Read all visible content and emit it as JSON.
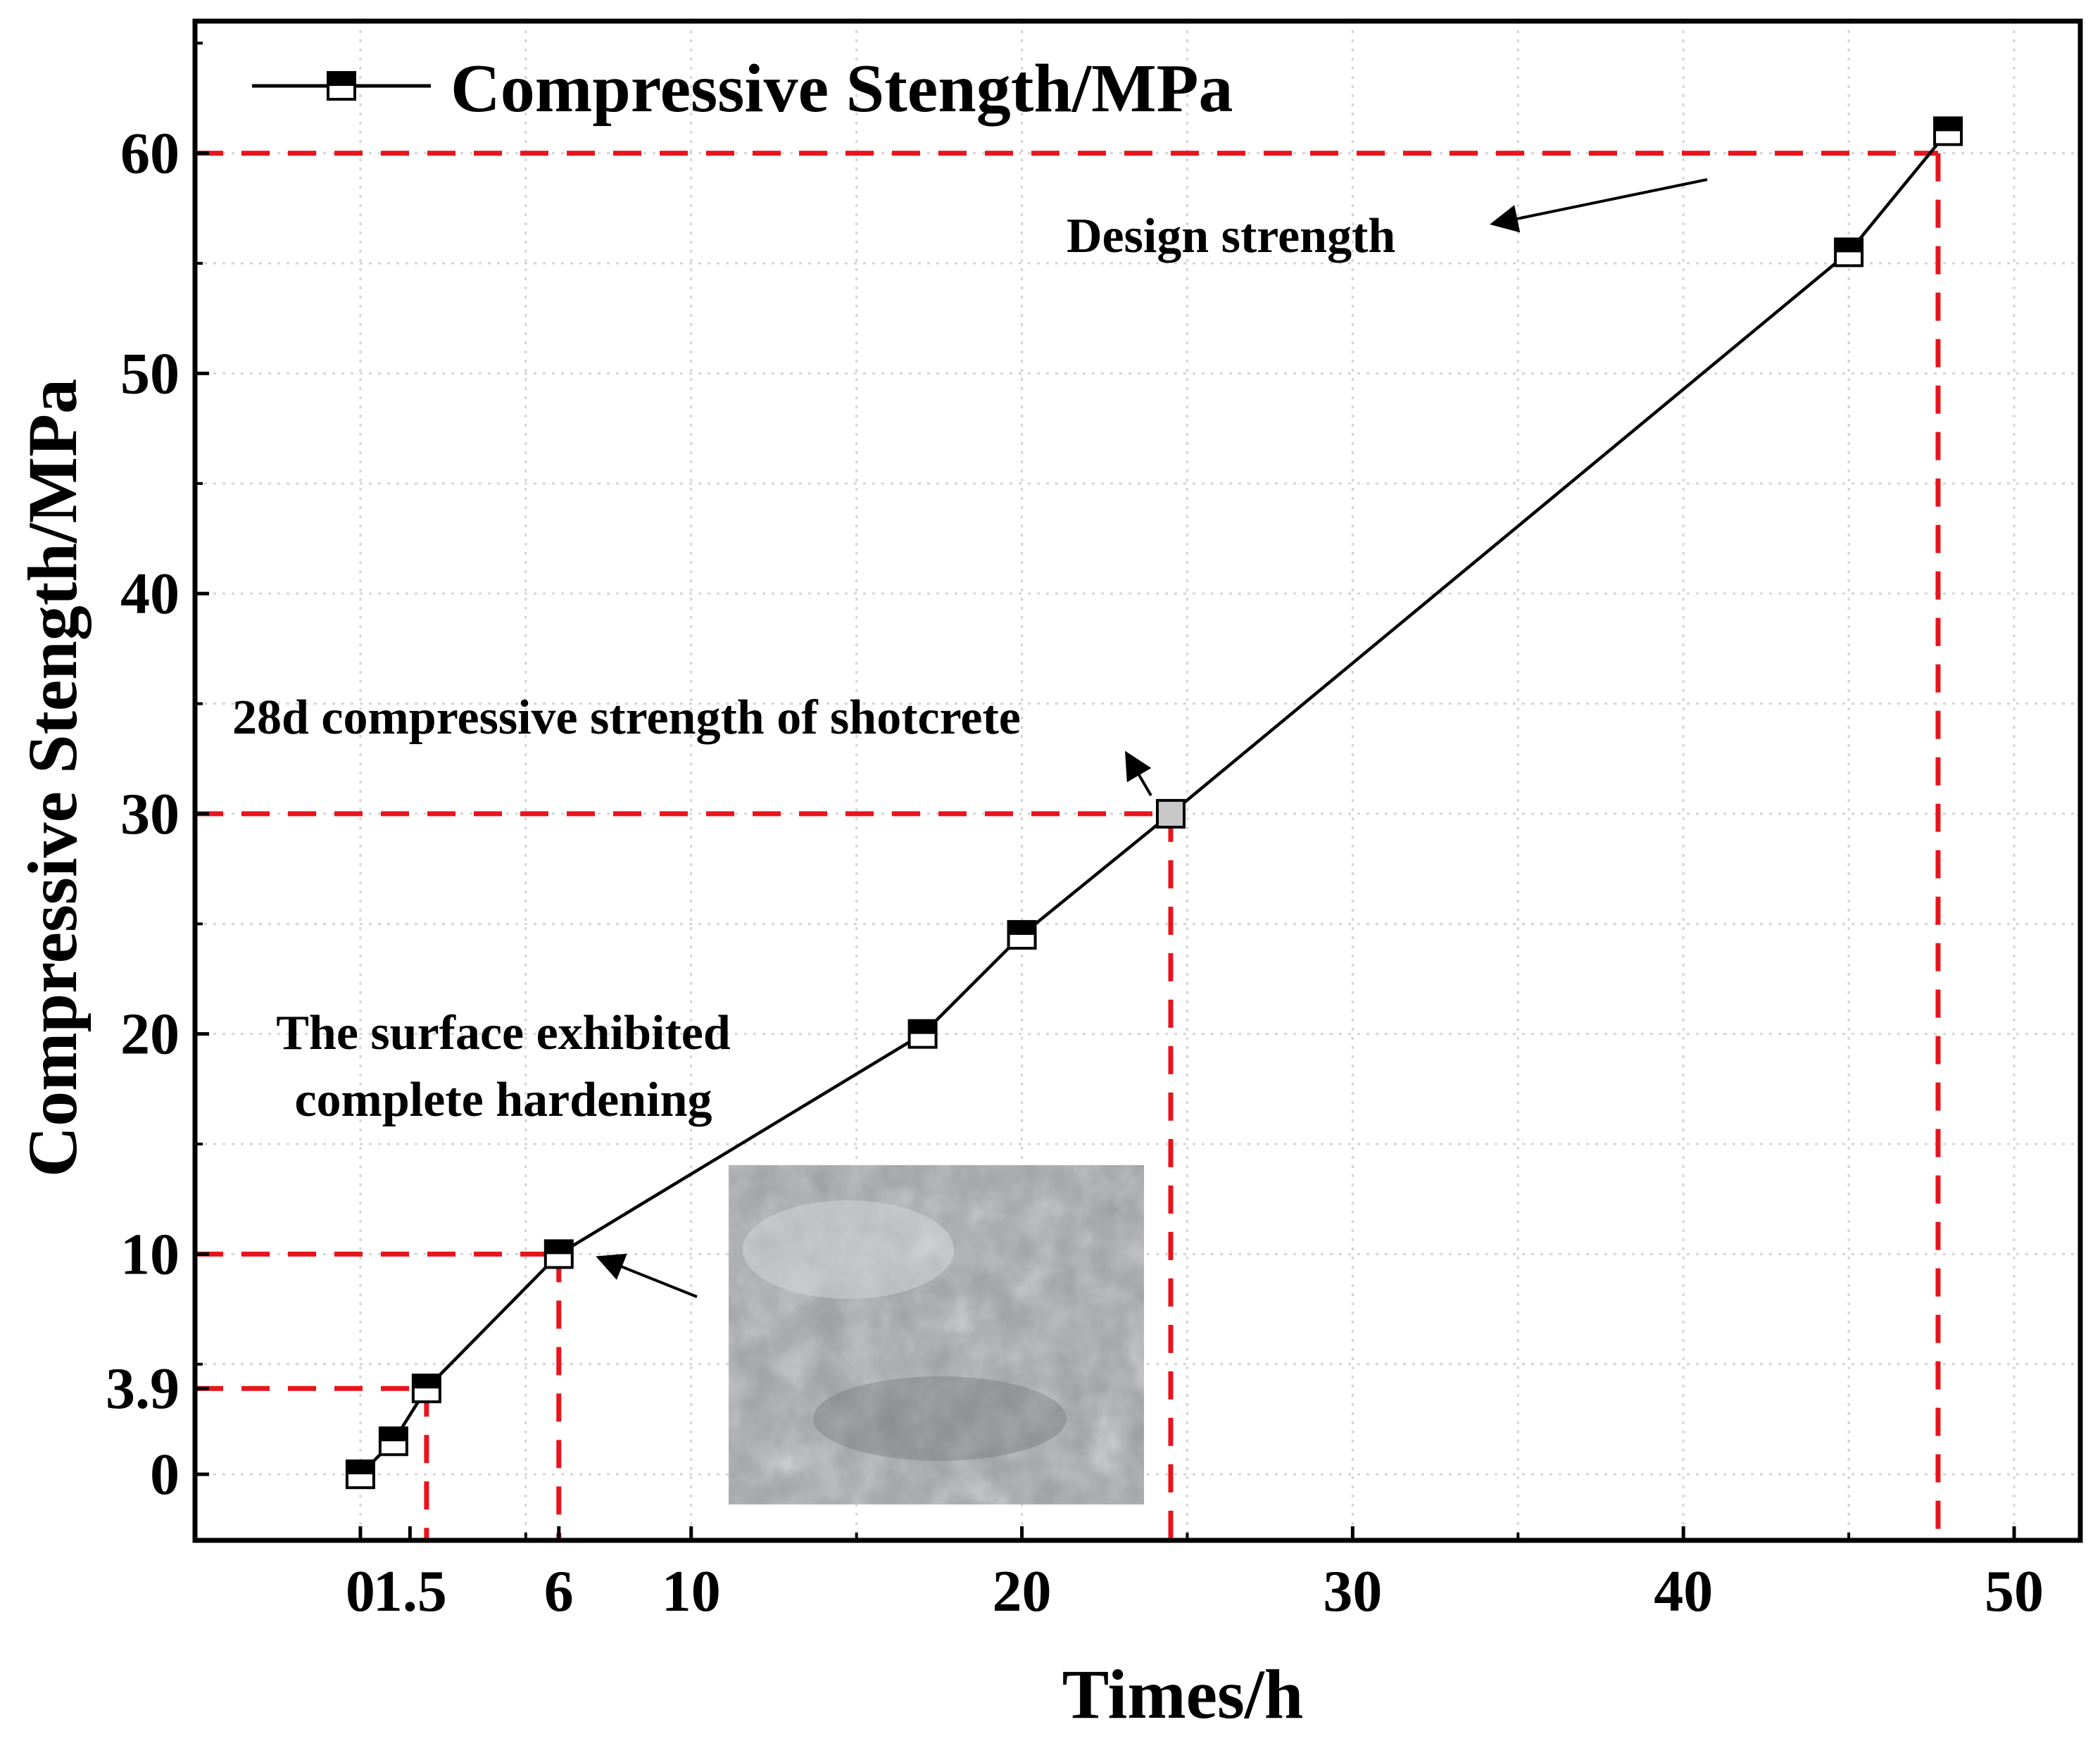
{
  "chart_data": {
    "type": "line",
    "title": "",
    "xlabel": "Times/h",
    "ylabel": "Compressive Stength/MPa",
    "xlim": [
      -5,
      52
    ],
    "ylim": [
      -3,
      66
    ],
    "xticks": [
      0,
      1.5,
      6,
      10,
      20,
      30,
      40,
      50
    ],
    "xtick_labels": [
      "0",
      "1.5",
      "6",
      "10",
      "20",
      "30",
      "40",
      "50"
    ],
    "yticks": [
      0,
      3.9,
      10,
      20,
      30,
      40,
      50,
      60
    ],
    "ytick_labels": [
      "0",
      "3.9",
      "10",
      "20",
      "30",
      "40",
      "50",
      "60"
    ],
    "grid": true,
    "legend_position": "top-left",
    "series": [
      {
        "name": "Compressive Stength/MPa",
        "x": [
          0,
          1,
          2,
          6,
          17,
          20,
          24.5,
          45,
          48
        ],
        "y": [
          0,
          1.5,
          3.9,
          10,
          20,
          24.5,
          30,
          55.5,
          61
        ],
        "marker": "half-filled-square",
        "color": "#000000"
      }
    ],
    "highlighted_point": {
      "x": 24.5,
      "y": 30,
      "color": "#c8c8c8"
    },
    "reference_lines": [
      {
        "y": 3.9,
        "x_end": 2,
        "color": "#e8141c"
      },
      {
        "y": 10,
        "x_end": 6,
        "color": "#e8141c"
      },
      {
        "y": 30,
        "x_end": 24.5,
        "color": "#e8141c"
      },
      {
        "y": 60,
        "x_end": 47.7,
        "color": "#e8141c"
      }
    ],
    "annotations": [
      {
        "text": "Design strength"
      },
      {
        "text": "28d compressive strength of shotcrete"
      },
      {
        "text_lines": [
          "The surface exhibited",
          "complete hardening"
        ]
      }
    ],
    "inset_photo": {
      "subject": "concrete-surface-photo",
      "color": "#9a9c9e"
    }
  }
}
